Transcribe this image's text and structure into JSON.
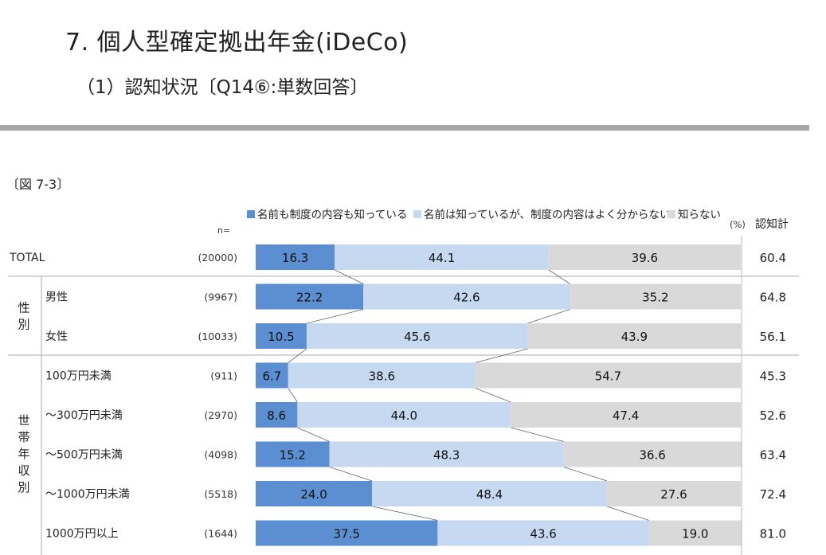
{
  "header": {
    "title": "7. 個人型確定拠出年金(iDeCo)",
    "subtitle": "（1）認知状況〔Q14⑥:単数回答〕"
  },
  "figure_label": "〔図 7-3〕",
  "chart_data": {
    "type": "bar",
    "orientation": "horizontal",
    "stacked": true,
    "unit": "%",
    "unit_label": "(%)",
    "n_header": "n=",
    "total_header": "認知計",
    "legend": [
      "名前も制度の内容も知っている",
      "名前は知っているが、制度の内容はよく分からない",
      "知らない"
    ],
    "colors": [
      "#5b8fd1",
      "#c6d9f0",
      "#d9d9d9"
    ],
    "groups": [
      {
        "label": "",
        "rows": [
          0
        ]
      },
      {
        "label": "性別",
        "rows": [
          1,
          2
        ]
      },
      {
        "label": "世帯年収別",
        "rows": [
          3,
          4,
          5,
          6,
          7
        ]
      }
    ],
    "rows": [
      {
        "label": "TOTAL",
        "n": "(20000)",
        "values": [
          16.3,
          44.1,
          39.6
        ],
        "total": "60.4"
      },
      {
        "label": "男性",
        "n": "(9967)",
        "values": [
          22.2,
          42.6,
          35.2
        ],
        "total": "64.8"
      },
      {
        "label": "女性",
        "n": "(10033)",
        "values": [
          10.5,
          45.6,
          43.9
        ],
        "total": "56.1"
      },
      {
        "label": "100万円未満",
        "n": "(911)",
        "values": [
          6.7,
          38.6,
          54.7
        ],
        "total": "45.3"
      },
      {
        "label": "～300万円未満",
        "n": "(2970)",
        "values": [
          8.6,
          44.0,
          47.4
        ],
        "total": "52.6"
      },
      {
        "label": "～500万円未満",
        "n": "(4098)",
        "values": [
          15.2,
          48.3,
          36.6
        ],
        "total": "63.4"
      },
      {
        "label": "～1000万円未満",
        "n": "(5518)",
        "values": [
          24.0,
          48.4,
          27.6
        ],
        "total": "72.4"
      },
      {
        "label": "1000万円以上",
        "n": "(1644)",
        "values": [
          37.5,
          43.6,
          19.0
        ],
        "total": "81.0"
      }
    ]
  }
}
